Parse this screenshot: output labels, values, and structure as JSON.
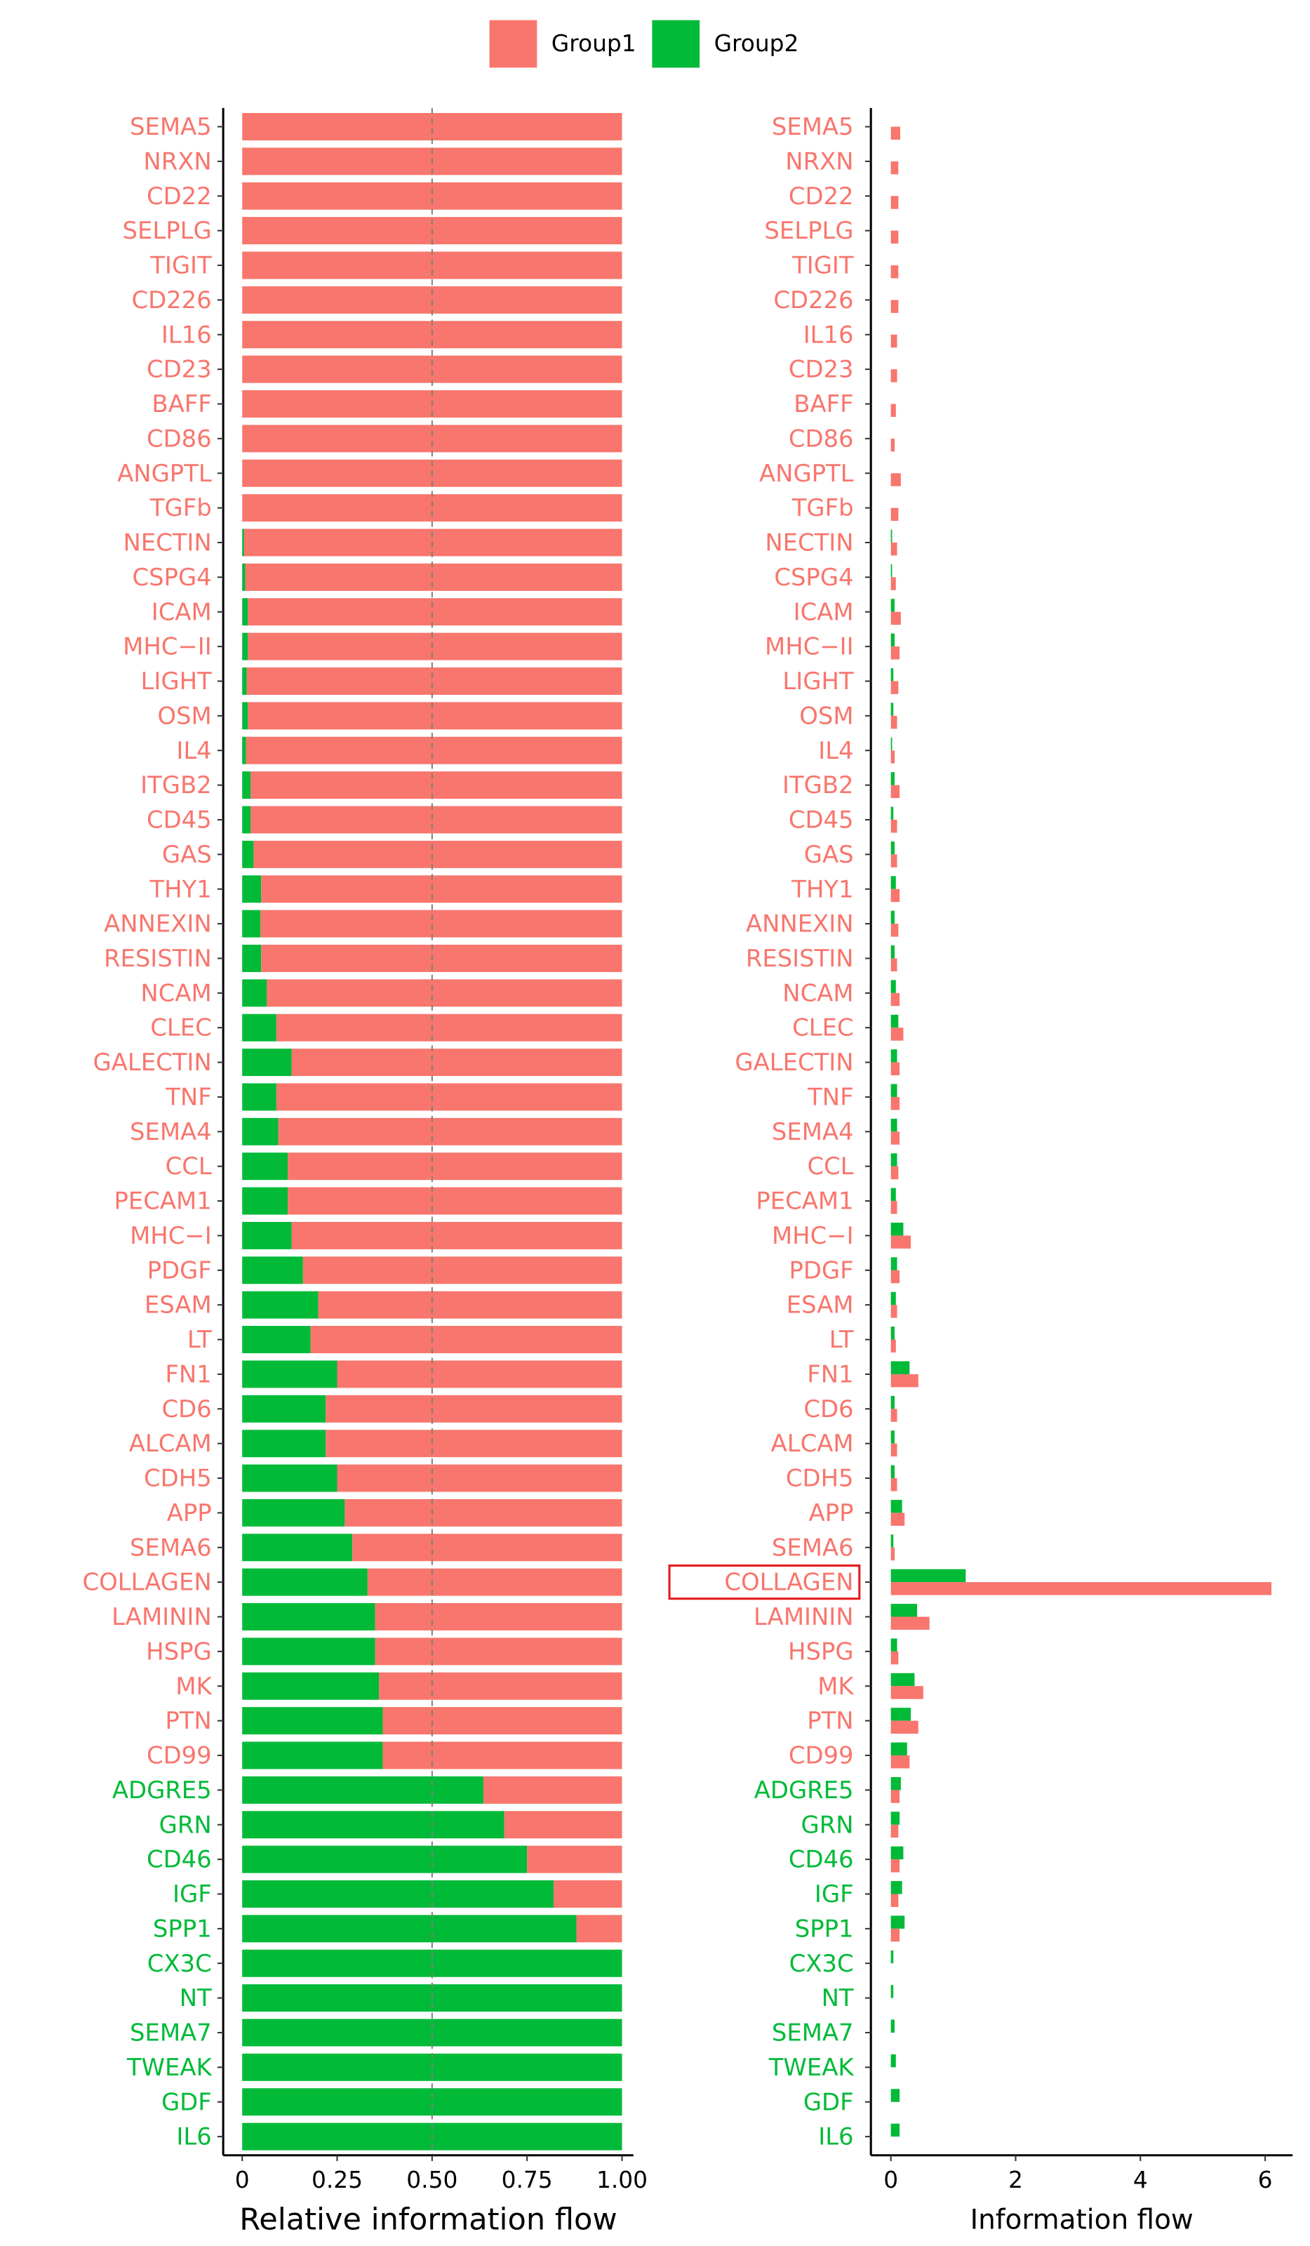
{
  "chart_data": [
    {
      "type": "stacked-bar",
      "orientation": "horizontal",
      "x_label": "Relative information flow",
      "categories": [
        "SEMA5",
        "NRXN",
        "CD22",
        "SELPLG",
        "TIGIT",
        "CD226",
        "IL16",
        "CD23",
        "BAFF",
        "CD86",
        "ANGPTL",
        "TGFb",
        "NECTIN",
        "CSPG4",
        "ICAM",
        "MHC−II",
        "LIGHT",
        "OSM",
        "IL4",
        "ITGB2",
        "CD45",
        "GAS",
        "THY1",
        "ANNEXIN",
        "RESISTIN",
        "NCAM",
        "CLEC",
        "GALECTIN",
        "TNF",
        "SEMA4",
        "CCL",
        "PECAM1",
        "MHC−I",
        "PDGF",
        "ESAM",
        "LT",
        "FN1",
        "CD6",
        "ALCAM",
        "CDH5",
        "APP",
        "SEMA6",
        "COLLAGEN",
        "LAMININ",
        "HSPG",
        "MK",
        "PTN",
        "CD99",
        "ADGRE5",
        "GRN",
        "CD46",
        "IGF",
        "SPP1",
        "CX3C",
        "NT",
        "SEMA7",
        "TWEAK",
        "GDF",
        "IL6"
      ],
      "series": [
        {
          "name": "Group1",
          "color": "#F8766D",
          "values": [
            1,
            1,
            1,
            1,
            1,
            1,
            1,
            1,
            1,
            1,
            1,
            1,
            0.995,
            0.992,
            0.985,
            0.985,
            0.988,
            0.985,
            0.99,
            0.978,
            0.978,
            0.97,
            0.95,
            0.952,
            0.95,
            0.935,
            0.91,
            0.87,
            0.91,
            0.905,
            0.88,
            0.88,
            0.87,
            0.84,
            0.8,
            0.82,
            0.75,
            0.78,
            0.78,
            0.75,
            0.73,
            0.71,
            0.67,
            0.65,
            0.65,
            0.64,
            0.63,
            0.63,
            0.365,
            0.31,
            0.25,
            0.18,
            0.12,
            0,
            0,
            0,
            0,
            0,
            0
          ]
        },
        {
          "name": "Group2",
          "color": "#00BA38",
          "values": [
            0,
            0,
            0,
            0,
            0,
            0,
            0,
            0,
            0,
            0,
            0,
            0,
            0.005,
            0.008,
            0.015,
            0.015,
            0.012,
            0.015,
            0.01,
            0.022,
            0.022,
            0.03,
            0.05,
            0.048,
            0.05,
            0.065,
            0.09,
            0.13,
            0.09,
            0.095,
            0.12,
            0.12,
            0.13,
            0.16,
            0.2,
            0.18,
            0.25,
            0.22,
            0.22,
            0.25,
            0.27,
            0.29,
            0.33,
            0.35,
            0.35,
            0.36,
            0.37,
            0.37,
            0.635,
            0.69,
            0.75,
            0.82,
            0.88,
            1,
            1,
            1,
            1,
            1,
            1
          ]
        }
      ],
      "xlim": [
        -0.05,
        1.03
      ],
      "xticks": [
        0,
        0.25,
        {
          "value": 0.5,
          "label": "0.50"
        },
        0.75,
        {
          "value": 1,
          "label": "1.00"
        }
      ],
      "reference_line": 0.5
    },
    {
      "type": "grouped-bar",
      "orientation": "horizontal",
      "x_label": "Information flow",
      "categories": [
        "SEMA5",
        "NRXN",
        "CD22",
        "SELPLG",
        "TIGIT",
        "CD226",
        "IL16",
        "CD23",
        "BAFF",
        "CD86",
        "ANGPTL",
        "TGFb",
        "NECTIN",
        "CSPG4",
        "ICAM",
        "MHC−II",
        "LIGHT",
        "OSM",
        "IL4",
        "ITGB2",
        "CD45",
        "GAS",
        "THY1",
        "ANNEXIN",
        "RESISTIN",
        "NCAM",
        "CLEC",
        "GALECTIN",
        "TNF",
        "SEMA4",
        "CCL",
        "PECAM1",
        "MHC−I",
        "PDGF",
        "ESAM",
        "LT",
        "FN1",
        "CD6",
        "ALCAM",
        "CDH5",
        "APP",
        "SEMA6",
        "COLLAGEN",
        "LAMININ",
        "HSPG",
        "MK",
        "PTN",
        "CD99",
        "ADGRE5",
        "GRN",
        "CD46",
        "IGF",
        "SPP1",
        "CX3C",
        "NT",
        "SEMA7",
        "TWEAK",
        "GDF",
        "IL6"
      ],
      "series": [
        {
          "color": "#00BA38",
          "values": [
            0,
            0,
            0,
            0,
            0,
            0,
            0,
            0,
            0,
            0,
            0,
            0,
            0.02,
            0.02,
            0.06,
            0.06,
            0.04,
            0.04,
            0.02,
            0.06,
            0.04,
            0.06,
            0.08,
            0.06,
            0.06,
            0.08,
            0.12,
            0.1,
            0.1,
            0.1,
            0.1,
            0.08,
            0.2,
            0.1,
            0.08,
            0.06,
            0.3,
            0.06,
            0.06,
            0.06,
            0.18,
            0.04,
            1.2,
            0.42,
            0.1,
            0.38,
            0.32,
            0.26,
            0.16,
            0.14,
            0.2,
            0.18,
            0.22,
            0.04,
            0.04,
            0.06,
            0.08,
            0.14,
            0.14
          ]
        },
        {
          "color": "#F8766D",
          "values": [
            0.15,
            0.12,
            0.12,
            0.12,
            0.12,
            0.12,
            0.1,
            0.1,
            0.08,
            0.06,
            0.16,
            0.12,
            0.1,
            0.08,
            0.16,
            0.14,
            0.12,
            0.1,
            0.06,
            0.14,
            0.1,
            0.1,
            0.14,
            0.12,
            0.1,
            0.14,
            0.2,
            0.14,
            0.14,
            0.14,
            0.12,
            0.1,
            0.32,
            0.14,
            0.1,
            0.08,
            0.44,
            0.1,
            0.1,
            0.1,
            0.22,
            0.06,
            6.1,
            0.62,
            0.12,
            0.52,
            0.44,
            0.3,
            0.14,
            0.12,
            0.14,
            0.12,
            0.14,
            0,
            0,
            0,
            0,
            0,
            0
          ]
        }
      ],
      "xlim": [
        -0.32,
        6.44
      ],
      "xticks": [
        0,
        2,
        4,
        6
      ],
      "highlight_index": 42
    }
  ]
}
